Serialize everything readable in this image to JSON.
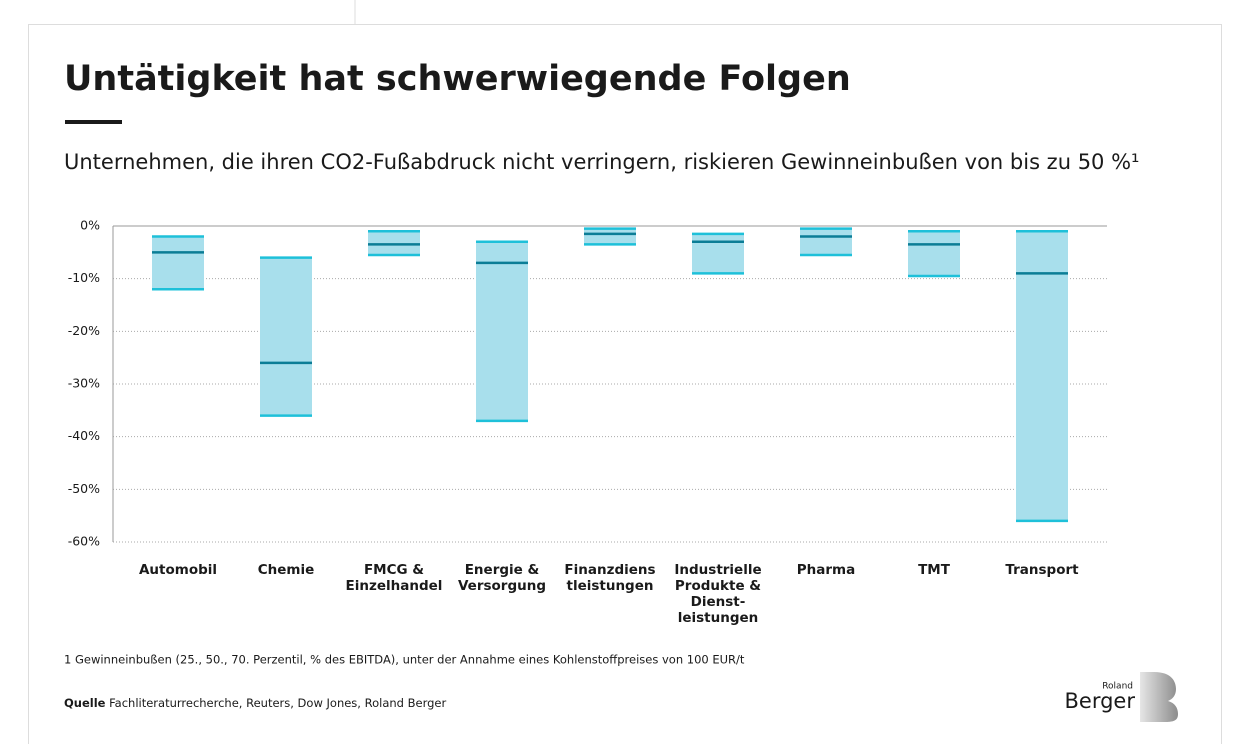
{
  "chart_data": {
    "type": "range",
    "title": "Untätigkeit hat schwerwiegende Folgen",
    "subtitle": "Unternehmen, die ihren CO2-Fußabdruck nicht verringern, riskieren Gewinneinbußen von bis zu 50 %¹",
    "categories": [
      [
        "Automobil"
      ],
      [
        "Chemie"
      ],
      [
        "FMCG &",
        "Einzelhandel"
      ],
      [
        "Energie &",
        "Versorgung"
      ],
      [
        "Finanzdiens",
        "tleistungen"
      ],
      [
        "Industrielle",
        "Produkte &",
        "Dienst-",
        "leistungen"
      ],
      [
        "Pharma"
      ],
      [
        "TMT"
      ],
      [
        "Transport"
      ]
    ],
    "series": [
      {
        "color": "#1ec0d9",
        "values": [
          -2,
          -6,
          -1,
          -3,
          -0.5,
          -1.5,
          -0.5,
          -1,
          -1
        ]
      },
      {
        "color": "#0b7d96",
        "values": [
          -5,
          -26,
          -3.5,
          -7,
          -1.5,
          -3,
          -2,
          -3.5,
          -9
        ]
      },
      {
        "color": "#1ec0d9",
        "values": [
          -12,
          -36,
          -5.5,
          -37,
          -3.5,
          -9,
          -5.5,
          -9.5,
          -56
        ]
      }
    ],
    "fill": "#a8dfec",
    "ylim": [
      -60,
      0
    ],
    "yticks": [
      {
        "value": 0,
        "label": "0%"
      },
      {
        "value": -10,
        "label": "-10%"
      },
      {
        "value": -20,
        "label": "-20%"
      },
      {
        "value": -30,
        "label": "-30%"
      },
      {
        "value": -40,
        "label": "-40%"
      },
      {
        "value": -50,
        "label": "-50%"
      },
      {
        "value": -60,
        "label": "-60%"
      }
    ],
    "grid": true,
    "footnote": "1  Gewinneinbußen (25., 50., 70. Perzentil, % des EBITDA), unter der Annahme eines Kohlenstoffpreises von 100 EUR/t",
    "source_label": "Quelle",
    "source": "Fachliteraturrecherche, Reuters, Dow Jones, Roland Berger",
    "logo_small": "Roland",
    "logo": "Berger"
  }
}
